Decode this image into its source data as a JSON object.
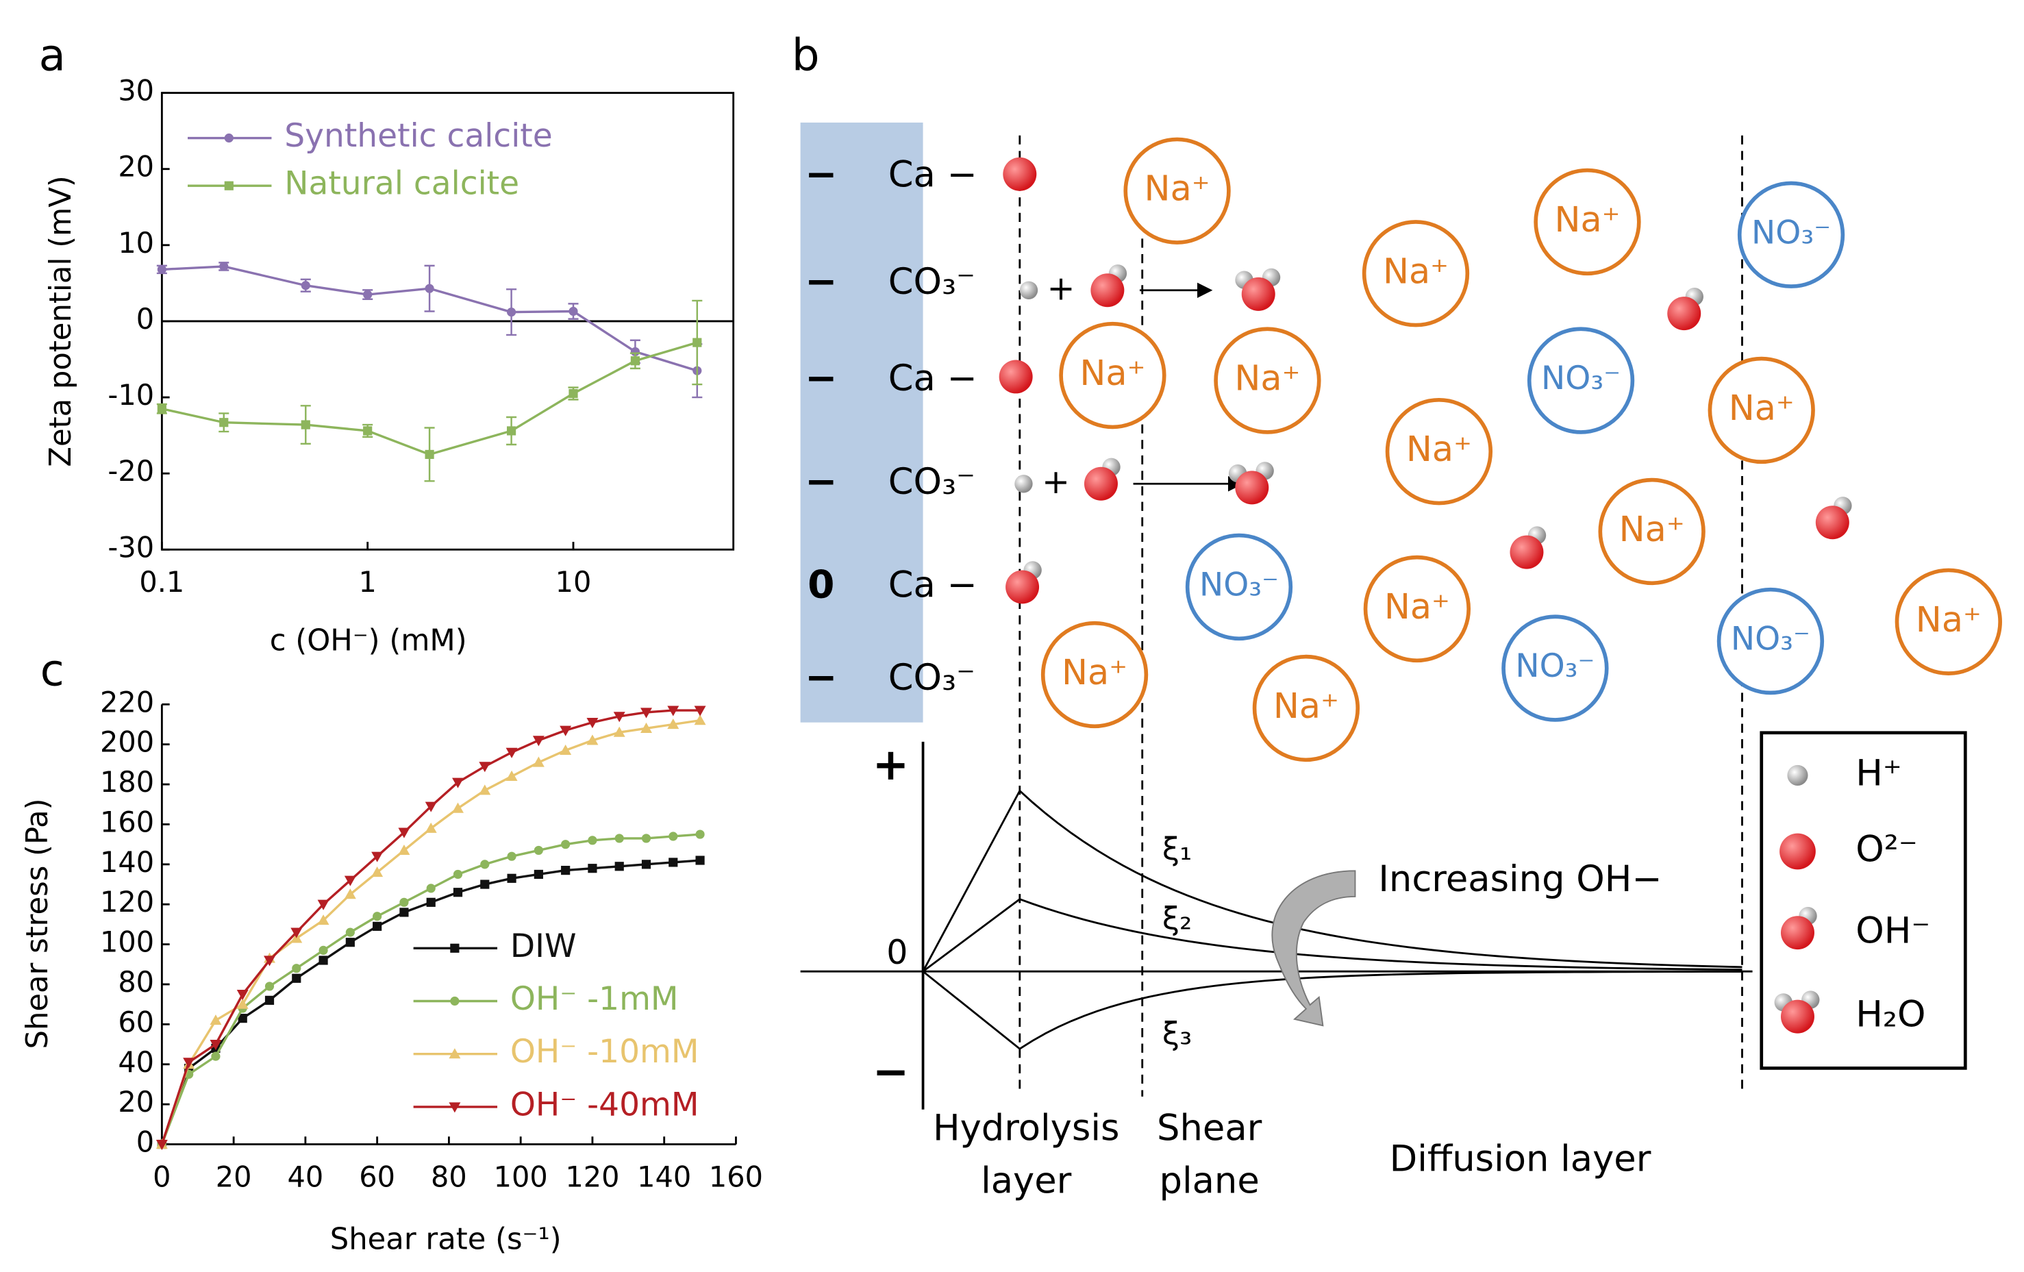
{
  "chart_data": [
    {
      "type": "line",
      "panel": "a",
      "xlabel": "c (OH⁻) (mM)",
      "ylabel": "Zeta potential (mV)",
      "xscale": "log",
      "xlim": [
        0.1,
        60
      ],
      "xticks": [
        0.1,
        1,
        10
      ],
      "ylim": [
        -30,
        30
      ],
      "yticks": [
        -30,
        -20,
        -10,
        0,
        10,
        20,
        30
      ],
      "zero_line": true,
      "legend": "upper left",
      "x": [
        0.1,
        0.2,
        0.5,
        1,
        2,
        5,
        10,
        20,
        40
      ],
      "series": [
        {
          "name": "Synthetic calcite",
          "color": "#8a72b0",
          "marker": "circle",
          "values": [
            6.8,
            7.2,
            4.7,
            3.5,
            4.3,
            1.2,
            1.3,
            -4,
            -6.5
          ],
          "errors": [
            0.5,
            0.5,
            0.8,
            0.6,
            3,
            3,
            1,
            1.5,
            3.5
          ]
        },
        {
          "name": "Natural calcite",
          "color": "#8db55c",
          "marker": "square",
          "values": [
            -11.5,
            -13.3,
            -13.6,
            -14.4,
            -17.5,
            -14.4,
            -9.5,
            -5.2,
            -2.8
          ],
          "errors": [
            0.6,
            1.2,
            2.5,
            0.8,
            3.5,
            1.8,
            0.8,
            1,
            5.5
          ]
        }
      ]
    },
    {
      "type": "line",
      "panel": "c",
      "xlabel": "Shear rate (s⁻¹)",
      "ylabel": "Shear stress (Pa)",
      "xlim": [
        0,
        160
      ],
      "xticks": [
        0,
        20,
        40,
        60,
        80,
        100,
        120,
        140,
        160
      ],
      "ylim": [
        0,
        220
      ],
      "yticks": [
        0,
        20,
        40,
        60,
        80,
        100,
        120,
        140,
        160,
        180,
        200,
        220
      ],
      "legend": "lower right",
      "x": [
        0,
        7.5,
        15,
        22.5,
        30,
        37.5,
        45,
        52.5,
        60,
        67.5,
        75,
        82.5,
        90,
        97.5,
        105,
        112.5,
        120,
        127.5,
        135,
        142.5,
        150
      ],
      "series": [
        {
          "name": "DIW",
          "color": "#111111",
          "marker": "square",
          "values": [
            0,
            38,
            48,
            63,
            72,
            83,
            92,
            101,
            109,
            116,
            121,
            126,
            130,
            133,
            135,
            137,
            138,
            139,
            140,
            141,
            142
          ]
        },
        {
          "name": "OH⁻ -1mM",
          "color": "#8db55c",
          "marker": "circle",
          "values": [
            0,
            35,
            44,
            68,
            79,
            88,
            97,
            106,
            114,
            121,
            128,
            135,
            140,
            144,
            147,
            150,
            152,
            153,
            153,
            154,
            155
          ]
        },
        {
          "name": "OH⁻ -10mM",
          "color": "#e8c46e",
          "marker": "triangle",
          "values": [
            0,
            40,
            62,
            70,
            93,
            103,
            112,
            125,
            136,
            147,
            158,
            168,
            177,
            184,
            191,
            197,
            202,
            206,
            208,
            210,
            212
          ]
        },
        {
          "name": "OH⁻ -40mM",
          "color": "#b51f24",
          "marker": "triangle-down",
          "values": [
            0,
            41,
            50,
            75,
            92,
            106,
            120,
            132,
            144,
            156,
            169,
            181,
            189,
            196,
            202,
            207,
            211,
            214,
            216,
            217,
            217
          ]
        }
      ]
    }
  ],
  "diagram": {
    "panel": "b",
    "surface": [
      {
        "charge": "−",
        "group": "Ca −"
      },
      {
        "charge": "−",
        "group": "CO₃⁻"
      },
      {
        "charge": "−",
        "group": "Ca −"
      },
      {
        "charge": "−",
        "group": "CO₃⁻"
      },
      {
        "charge": "0",
        "group": "Ca −"
      },
      {
        "charge": "−",
        "group": "CO₃⁻"
      }
    ],
    "reaction_plus": [
      "+",
      "+"
    ],
    "ions": [
      "Na⁺",
      "Na⁺",
      "Na⁺",
      "Na⁺",
      "Na⁺",
      "Na⁺",
      "Na⁺",
      "Na⁺",
      "Na⁺",
      "Na⁺",
      "Na⁺",
      "Na⁺",
      "NO₃⁻",
      "NO₃⁻",
      "NO₃⁻",
      "NO₃⁻",
      "NO₃⁻"
    ],
    "potential_axis": [
      "+",
      "0",
      "−"
    ],
    "curves": [
      "ξ₁",
      "ξ₂",
      "ξ₃"
    ],
    "arrow_label": "Increasing OH−",
    "layers": [
      [
        "Hydrolysis",
        "layer"
      ],
      [
        "Shear",
        "plane"
      ],
      [
        "Diffusion layer"
      ]
    ],
    "legend": [
      "H⁺",
      "O²⁻",
      "OH⁻",
      "H₂O"
    ]
  }
}
